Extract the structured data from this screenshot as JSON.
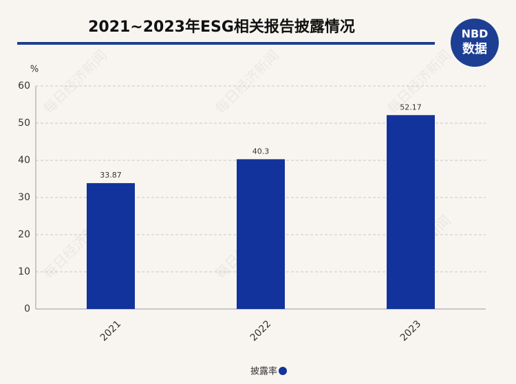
{
  "chart_data": {
    "type": "bar",
    "title": "2021~2023年ESG相关报告披露情况",
    "y_label": "%",
    "categories": [
      "2021",
      "2022",
      "2023"
    ],
    "series": [
      {
        "name": "披露率",
        "color": "#12339b",
        "values": [
          33.87,
          40.3,
          52.17
        ]
      }
    ],
    "ylim": [
      0,
      60
    ],
    "yticks": [
      0,
      10,
      20,
      30,
      40,
      50,
      60
    ],
    "grid": true,
    "legend": "bottom"
  },
  "logo": {
    "brand": "NBD",
    "sub": "数据"
  },
  "watermark": "每日经济新闻"
}
